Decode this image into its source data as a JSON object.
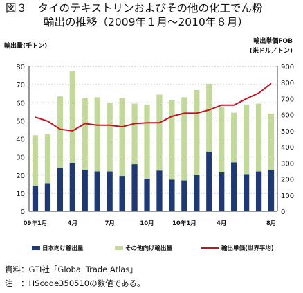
{
  "title_line1": "図３　タイのテキストリンおよびその他の化工でん粉",
  "title_line2": "輸出の推移（2009年１月～2010年８月）",
  "colors": {
    "japan": "#1f3a73",
    "other": "#c3d99b",
    "price": "#c0151f",
    "grid": "#9a9a9a"
  },
  "chart_data": {
    "type": "bar",
    "stacked": true,
    "left_axis_label": "輸出量(千トン)",
    "right_axis_label_line1": "輸出単価FOB",
    "right_axis_label_line2": "(米ドル／トン)",
    "ylim_left": [
      0,
      80
    ],
    "ylim_right": [
      0,
      900
    ],
    "yticks_left": [
      "0",
      "10",
      "20",
      "30",
      "40",
      "50",
      "60",
      "70",
      "80"
    ],
    "yticks_right": [
      "0",
      "100",
      "200",
      "300",
      "400",
      "500",
      "600",
      "700",
      "800",
      "900"
    ],
    "x_labels": [
      {
        "index": 0,
        "label": "09年1月"
      },
      {
        "index": 3,
        "label": "4月"
      },
      {
        "index": 6,
        "label": "7月"
      },
      {
        "index": 9,
        "label": "10月"
      },
      {
        "index": 12,
        "label": "10年1月"
      },
      {
        "index": 15,
        "label": "4月"
      },
      {
        "index": 19,
        "label": "8月"
      }
    ],
    "series": [
      {
        "name": "日本向け輸出量",
        "kind": "bar",
        "values": [
          14,
          15.5,
          24,
          26.5,
          23,
          22,
          22,
          19.5,
          26,
          18,
          22.5,
          17.5,
          17,
          20,
          33,
          21.5,
          27,
          20.5,
          22,
          23
        ]
      },
      {
        "name": "その他向け輸出量",
        "kind": "bar",
        "values": [
          28,
          27,
          39.5,
          51,
          39.5,
          41,
          38,
          43,
          33.5,
          41,
          42,
          44,
          46,
          47,
          37.5,
          36,
          27.5,
          38.5,
          37.5,
          31
        ]
      },
      {
        "name": "輸出単価(世界平均)",
        "kind": "line",
        "values": [
          585,
          560,
          510,
          500,
          545,
          535,
          535,
          525,
          545,
          550,
          550,
          590,
          610,
          610,
          630,
          660,
          660,
          700,
          735,
          795
        ]
      }
    ]
  },
  "notes": {
    "source": "資料：GTI社「Global Trade Atlas」",
    "note": "注　：HScode350510の数値である。"
  }
}
